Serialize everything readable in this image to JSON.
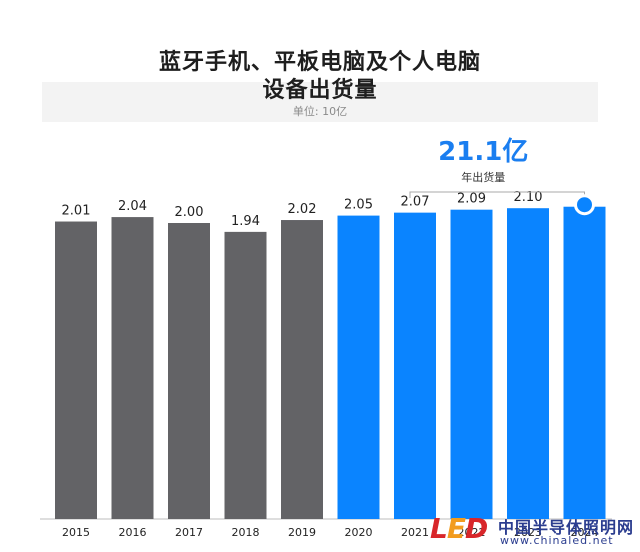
{
  "chart_data": {
    "type": "bar",
    "title": [
      "蓝牙手机、平板电脑及个人电脑",
      "设备出货量"
    ],
    "subtitle": "单位: 10亿",
    "categories": [
      "2015",
      "2016",
      "2017",
      "2018",
      "2019",
      "2020",
      "2021",
      "2022",
      "2023",
      "2024"
    ],
    "values": [
      2.01,
      2.04,
      2.0,
      1.94,
      2.02,
      2.05,
      2.07,
      2.09,
      2.1,
      2.11
    ],
    "data_labels": [
      "2.01",
      "2.04",
      "2.00",
      "1.94",
      "2.02",
      "2.05",
      "2.07",
      "2.09",
      "2.10",
      ""
    ],
    "ylim": [
      0,
      2.3
    ],
    "grid": false,
    "colors": {
      "historical": "#636366",
      "forecast": "#0a84ff",
      "callout": "#1a7ef0",
      "title": "#1e1e1e"
    },
    "forecast_start_index": 5,
    "callout": {
      "value_text": "21.1亿",
      "label": "年出货量",
      "target_index": 9
    }
  },
  "watermark": {
    "logo": "LED",
    "name": "中国半导体照明网",
    "url": "www.chinaled.net"
  }
}
